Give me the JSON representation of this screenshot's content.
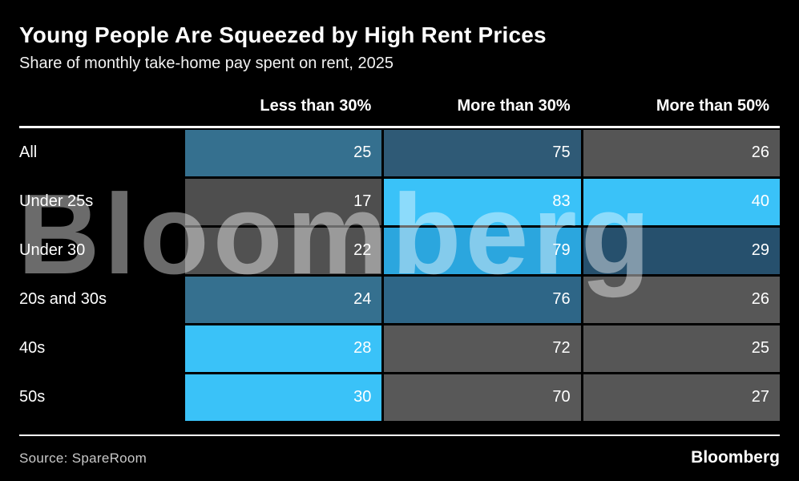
{
  "chart_data": {
    "type": "heatmap",
    "title": "Young People Are Squeezed by High Rent Prices",
    "subtitle": "Share of monthly take-home pay spent on rent, 2025",
    "unit": "% of monthly take-home pay spent on rent",
    "columns": [
      "Less than 30%",
      "More than 30%",
      "More than 50%"
    ],
    "rows": [
      {
        "label": "All",
        "values": [
          25,
          75,
          26
        ],
        "cell_colors": [
          "#35708f",
          "#2f5a76",
          "#555555"
        ]
      },
      {
        "label": "Under 25s",
        "values": [
          17,
          83,
          40
        ],
        "cell_colors": [
          "#4e4e4e",
          "#3ac2f8",
          "#3ac2f8"
        ]
      },
      {
        "label": "Under 30",
        "values": [
          22,
          79,
          29
        ],
        "cell_colors": [
          "#515151",
          "#2ba6de",
          "#26506d"
        ]
      },
      {
        "label": "20s and 30s",
        "values": [
          24,
          76,
          26
        ],
        "cell_colors": [
          "#35708f",
          "#2e6687",
          "#575757"
        ]
      },
      {
        "label": "40s",
        "values": [
          28,
          72,
          25
        ],
        "cell_colors": [
          "#3ac2f8",
          "#585858",
          "#565656"
        ]
      },
      {
        "label": "50s",
        "values": [
          30,
          70,
          27
        ],
        "cell_colors": [
          "#3ac2f8",
          "#585858",
          "#565656"
        ]
      }
    ],
    "color_scale_note": "Cells shaded by relative value within each column: bright cyan = highest, mid blue = middle, gray = lowest",
    "legend_position": "none",
    "grid": false
  },
  "watermark": {
    "text": "Bloomberg"
  },
  "footer": {
    "source": "Source: SpareRoom",
    "logo": "Bloomberg"
  },
  "colors": {
    "background": "#000000",
    "accent_cyan": "#3ac2f8",
    "text": "#ffffff",
    "source_text": "#c9c9c9",
    "rule": "#ffffff"
  }
}
